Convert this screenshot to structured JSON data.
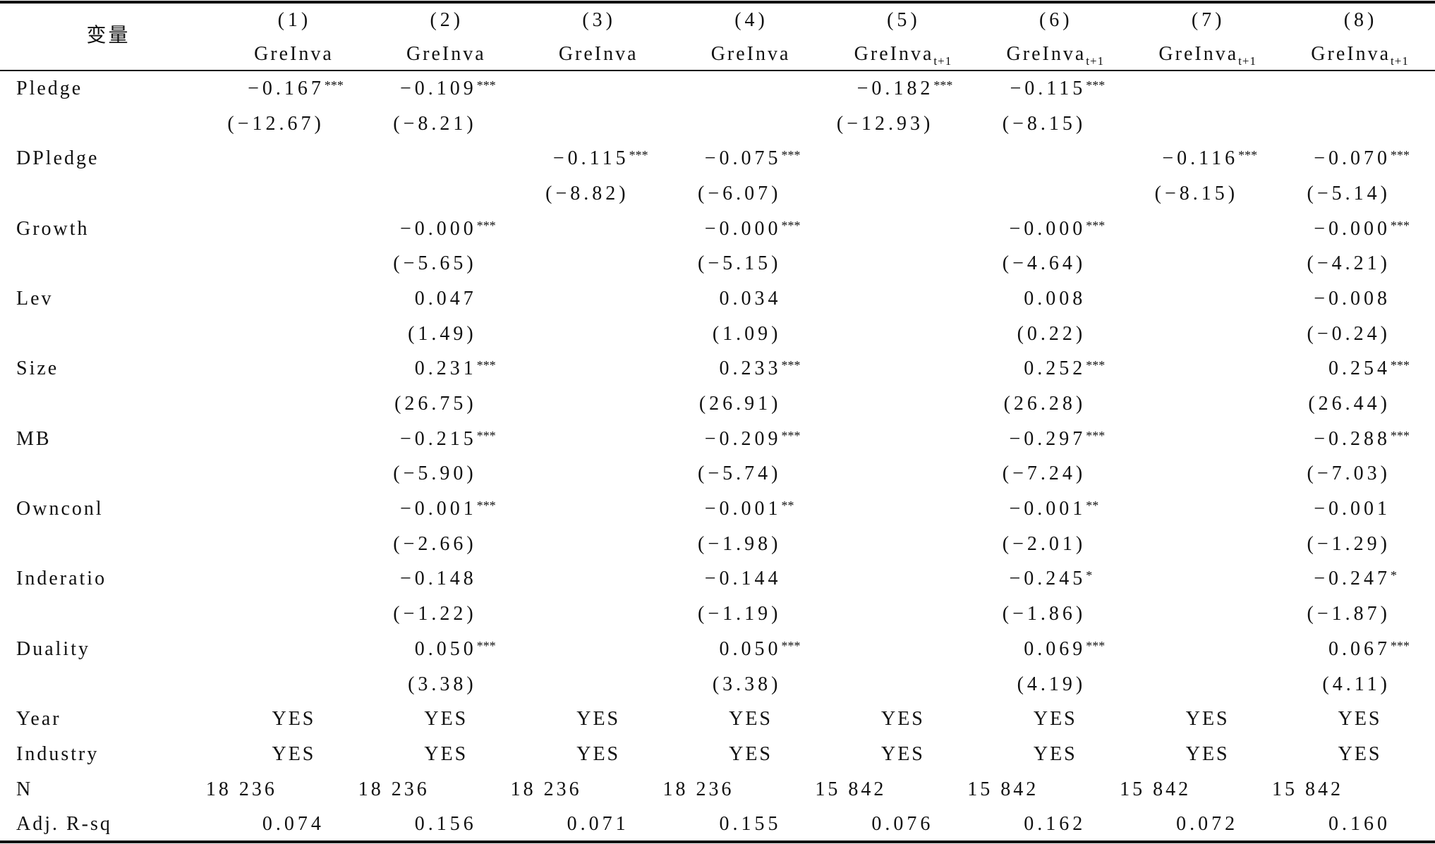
{
  "table": {
    "header": {
      "variable_label": "变量",
      "columns": [
        {
          "number": "(1)",
          "dep_var": "GreInva"
        },
        {
          "number": "(2)",
          "dep_var": "GreInva"
        },
        {
          "number": "(3)",
          "dep_var": "GreInva"
        },
        {
          "number": "(4)",
          "dep_var": "GreInva"
        },
        {
          "number": "(5)",
          "dep_var": "GreInva",
          "subscript": "t+1"
        },
        {
          "number": "(6)",
          "dep_var": "GreInva",
          "subscript": "t+1"
        },
        {
          "number": "(7)",
          "dep_var": "GreInva",
          "subscript": "t+1"
        },
        {
          "number": "(8)",
          "dep_var": "GreInva",
          "subscript": "t+1"
        }
      ]
    },
    "variables": [
      {
        "label": "Pledge",
        "coef": [
          "−0.167",
          "−0.109",
          null,
          null,
          "−0.182",
          "−0.115",
          null,
          null
        ],
        "stars": [
          "***",
          "***",
          null,
          null,
          "***",
          "***",
          null,
          null
        ],
        "tstat": [
          "(−12.67)",
          "(−8.21)",
          null,
          null,
          "(−12.93)",
          "(−8.15)",
          null,
          null
        ]
      },
      {
        "label": "DPledge",
        "coef": [
          null,
          null,
          "−0.115",
          "−0.075",
          null,
          null,
          "−0.116",
          "−0.070"
        ],
        "stars": [
          null,
          null,
          "***",
          "***",
          null,
          null,
          "***",
          "***"
        ],
        "tstat": [
          null,
          null,
          "(−8.82)",
          "(−6.07)",
          null,
          null,
          "(−8.15)",
          "(−5.14)"
        ]
      },
      {
        "label": "Growth",
        "coef": [
          null,
          "−0.000",
          null,
          "−0.000",
          null,
          "−0.000",
          null,
          "−0.000"
        ],
        "stars": [
          null,
          "***",
          null,
          "***",
          null,
          "***",
          null,
          "***"
        ],
        "tstat": [
          null,
          "(−5.65)",
          null,
          "(−5.15)",
          null,
          "(−4.64)",
          null,
          "(−4.21)"
        ]
      },
      {
        "label": "Lev",
        "coef": [
          null,
          "0.047",
          null,
          "0.034",
          null,
          "0.008",
          null,
          "−0.008"
        ],
        "stars": [
          null,
          null,
          null,
          null,
          null,
          null,
          null,
          null
        ],
        "tstat": [
          null,
          "(1.49)",
          null,
          "(1.09)",
          null,
          "(0.22)",
          null,
          "(−0.24)"
        ]
      },
      {
        "label": "Size",
        "coef": [
          null,
          "0.231",
          null,
          "0.233",
          null,
          "0.252",
          null,
          "0.254"
        ],
        "stars": [
          null,
          "***",
          null,
          "***",
          null,
          "***",
          null,
          "***"
        ],
        "tstat": [
          null,
          "(26.75)",
          null,
          "(26.91)",
          null,
          "(26.28)",
          null,
          "(26.44)"
        ]
      },
      {
        "label": "MB",
        "coef": [
          null,
          "−0.215",
          null,
          "−0.209",
          null,
          "−0.297",
          null,
          "−0.288"
        ],
        "stars": [
          null,
          "***",
          null,
          "***",
          null,
          "***",
          null,
          "***"
        ],
        "tstat": [
          null,
          "(−5.90)",
          null,
          "(−5.74)",
          null,
          "(−7.24)",
          null,
          "(−7.03)"
        ]
      },
      {
        "label": "Ownconl",
        "coef": [
          null,
          "−0.001",
          null,
          "−0.001",
          null,
          "−0.001",
          null,
          "−0.001"
        ],
        "stars": [
          null,
          "***",
          null,
          "**",
          null,
          "**",
          null,
          null
        ],
        "tstat": [
          null,
          "(−2.66)",
          null,
          "(−1.98)",
          null,
          "(−2.01)",
          null,
          "(−1.29)"
        ]
      },
      {
        "label": "Inderatio",
        "coef": [
          null,
          "−0.148",
          null,
          "−0.144",
          null,
          "−0.245",
          null,
          "−0.247"
        ],
        "stars": [
          null,
          null,
          null,
          null,
          null,
          "*",
          null,
          "*"
        ],
        "tstat": [
          null,
          "(−1.22)",
          null,
          "(−1.19)",
          null,
          "(−1.86)",
          null,
          "(−1.87)"
        ]
      },
      {
        "label": "Duality",
        "coef": [
          null,
          "0.050",
          null,
          "0.050",
          null,
          "0.069",
          null,
          "0.067"
        ],
        "stars": [
          null,
          "***",
          null,
          "***",
          null,
          "***",
          null,
          "***"
        ],
        "tstat": [
          null,
          "(3.38)",
          null,
          "(3.38)",
          null,
          "(4.19)",
          null,
          "(4.11)"
        ]
      }
    ],
    "indicator_rows": [
      {
        "label": "Year",
        "values": [
          "YES",
          "YES",
          "YES",
          "YES",
          "YES",
          "YES",
          "YES",
          "YES"
        ]
      },
      {
        "label": "Industry",
        "values": [
          "YES",
          "YES",
          "YES",
          "YES",
          "YES",
          "YES",
          "YES",
          "YES"
        ]
      }
    ],
    "observations": {
      "label": "N",
      "values": [
        "18 236",
        "18 236",
        "18 236",
        "18 236",
        "15 842",
        "15 842",
        "15 842",
        "15 842"
      ]
    },
    "adj_r2": {
      "label": "Adj. R-sq",
      "values": [
        "0.074",
        "0.156",
        "0.071",
        "0.155",
        "0.076",
        "0.162",
        "0.072",
        "0.160"
      ]
    }
  }
}
